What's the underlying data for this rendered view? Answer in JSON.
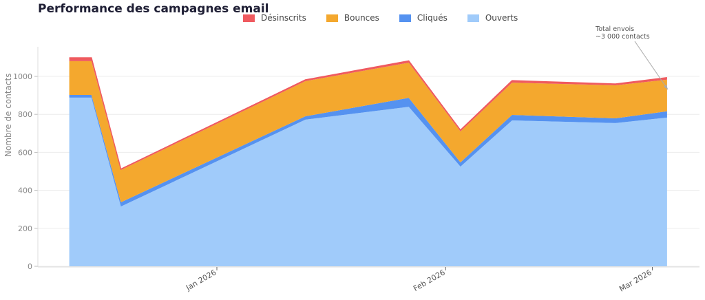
{
  "title": "Performance des campagnes email",
  "legend": [
    {
      "label": "Désinscrits",
      "color": "#ef5a5f"
    },
    {
      "label": "Bounces",
      "color": "#f4a82e"
    },
    {
      "label": "Cliqués",
      "color": "#5592f0"
    },
    {
      "label": "Ouverts",
      "color": "#a0cbfa"
    }
  ],
  "annotation": {
    "line1": "Total envois",
    "line2": "~3 000 contacts"
  },
  "chart_data": {
    "type": "area",
    "stacked": true,
    "title": "Performance des campagnes email",
    "xlabel": "",
    "ylabel": "Nombre de contacts",
    "ylim": [
      0,
      1150
    ],
    "yticks": [
      0,
      200,
      400,
      600,
      800,
      1000
    ],
    "xtick_labels": [
      "Jan 2026",
      "Feb 2026",
      "Mar 2026"
    ],
    "grid": true,
    "legend_position": "top",
    "x": [
      "2025-12-12",
      "2025-12-15",
      "2025-12-19",
      "2026-01-13",
      "2026-01-27",
      "2026-02-03",
      "2026-02-10",
      "2026-02-24",
      "2026-03-03"
    ],
    "series": [
      {
        "name": "Ouverts",
        "color": "#a0cbfa",
        "values": [
          888,
          888,
          315,
          772,
          840,
          525,
          768,
          754,
          783
        ]
      },
      {
        "name": "Cliqués",
        "color": "#5592f0",
        "values": [
          14,
          14,
          22,
          18,
          47,
          22,
          29,
          25,
          33
        ]
      },
      {
        "name": "Bounces",
        "color": "#f4a82e",
        "values": [
          178,
          178,
          170,
          185,
          185,
          163,
          170,
          174,
          167
        ]
      },
      {
        "name": "Désinscrits",
        "color": "#ef5a5f",
        "values": [
          18,
          18,
          5,
          7,
          10,
          7,
          11,
          7,
          11
        ]
      }
    ],
    "annotations": [
      {
        "text": "Total envois\n~3 000 contacts",
        "target": "2026-03-03"
      }
    ]
  }
}
